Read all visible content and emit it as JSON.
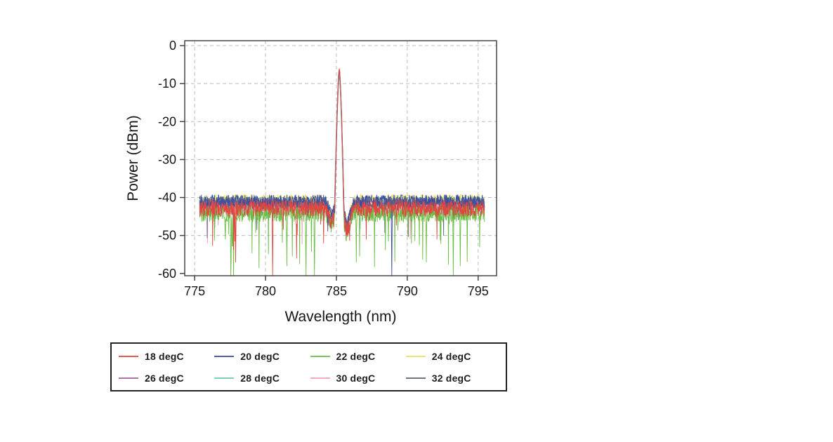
{
  "figure": {
    "background_color": "#ffffff",
    "frame_color": "#454545",
    "text_color": "#161616"
  },
  "chart_data": {
    "type": "line",
    "title": "",
    "xlabel": "Wavelength (nm)",
    "ylabel": "Power (dBm)",
    "xlim": [
      774.3,
      796.3
    ],
    "ylim": [
      -60.6,
      1.3
    ],
    "xticks": [
      775,
      780,
      785,
      790,
      795
    ],
    "yticks": [
      0,
      -10,
      -20,
      -30,
      -40,
      -50,
      -60
    ],
    "grid": {
      "style": "dashed",
      "color": "#bcbcbc"
    },
    "data_x_range_nm": [
      775.35,
      795.45
    ],
    "peak": {
      "center_nm": 785.2,
      "top_dbm": -6.0,
      "halfwidth_nm": 0.32,
      "drop_db": 36
    },
    "noise_floor": {
      "band_top_dbm": -39.5,
      "band_mean_dbm": -42.5,
      "spike_floor_dbm": -60
    },
    "series": [
      {
        "label": "18 degC",
        "color": "#e0463f",
        "noise_base_dbm": -42.8,
        "noise_amp_db": 2.2,
        "spike_prob": 0.012,
        "spike_depth_db": 8,
        "peak_top_dbm": -6.0,
        "z": 8
      },
      {
        "label": "20 degC",
        "color": "#3f4e9e",
        "noise_base_dbm": -41.0,
        "noise_amp_db": 1.7,
        "spike_prob": 0.008,
        "spike_depth_db": 6,
        "peak_top_dbm": -6.5,
        "z": 7
      },
      {
        "label": "22 degC",
        "color": "#6cbd45",
        "noise_base_dbm": -44.2,
        "noise_amp_db": 2.2,
        "spike_prob": 0.03,
        "spike_depth_db": 10,
        "peak_top_dbm": -6.6,
        "z": 6
      },
      {
        "label": "24 degC",
        "color": "#e9e163",
        "noise_base_dbm": -40.6,
        "noise_amp_db": 1.4,
        "spike_prob": 0.004,
        "spike_depth_db": 4,
        "peak_top_dbm": -6.8,
        "z": 1
      },
      {
        "label": "26 degC",
        "color": "#a564a3",
        "noise_base_dbm": -42.5,
        "noise_amp_db": 1.9,
        "spike_prob": 0.009,
        "spike_depth_db": 7,
        "peak_top_dbm": -6.4,
        "z": 3
      },
      {
        "label": "28 degC",
        "color": "#6fc9ba",
        "noise_base_dbm": -41.6,
        "noise_amp_db": 1.6,
        "spike_prob": 0.006,
        "spike_depth_db": 5,
        "peak_top_dbm": -6.7,
        "z": 2
      },
      {
        "label": "30 degC",
        "color": "#eda4b9",
        "noise_base_dbm": -43.0,
        "noise_amp_db": 2.0,
        "spike_prob": 0.012,
        "spike_depth_db": 9,
        "peak_top_dbm": -6.6,
        "z": 4
      },
      {
        "label": "32 degC",
        "color": "#5c6880",
        "noise_base_dbm": -41.6,
        "noise_amp_db": 1.7,
        "spike_prob": 0.006,
        "spike_depth_db": 6,
        "peak_top_dbm": -6.3,
        "z": 5
      }
    ],
    "deep_spikes": [
      {
        "nm": 775.9,
        "series": "30 degC",
        "to_dbm": -52
      },
      {
        "nm": 777.55,
        "series": "22 degC",
        "to_dbm": -60
      },
      {
        "nm": 777.75,
        "series": "22 degC",
        "to_dbm": -60
      },
      {
        "nm": 777.9,
        "series": "18 degC",
        "to_dbm": -57
      },
      {
        "nm": 780.5,
        "series": "18 degC",
        "to_dbm": -60
      },
      {
        "nm": 781.5,
        "series": "22 degC",
        "to_dbm": -58
      },
      {
        "nm": 782.2,
        "series": "18 degC",
        "to_dbm": -56
      },
      {
        "nm": 782.85,
        "series": "22 degC",
        "to_dbm": -60
      },
      {
        "nm": 783.45,
        "series": "22 degC",
        "to_dbm": -60
      },
      {
        "nm": 784.1,
        "series": "18 degC",
        "to_dbm": -52
      },
      {
        "nm": 786.4,
        "series": "22 degC",
        "to_dbm": -57
      },
      {
        "nm": 787.1,
        "series": "18 degC",
        "to_dbm": -51
      },
      {
        "nm": 788.9,
        "series": "20 degC",
        "to_dbm": -60
      },
      {
        "nm": 790.3,
        "series": "22 degC",
        "to_dbm": -52
      },
      {
        "nm": 791.35,
        "series": "22 degC",
        "to_dbm": -57
      },
      {
        "nm": 792.1,
        "series": "18 degC",
        "to_dbm": -51
      },
      {
        "nm": 793.25,
        "series": "22 degC",
        "to_dbm": -60
      },
      {
        "nm": 793.75,
        "series": "22 degC",
        "to_dbm": -58
      },
      {
        "nm": 795.1,
        "series": "22 degC",
        "to_dbm": -53
      }
    ],
    "legend": {
      "position": "below-plot",
      "rows": 2,
      "columns": 4,
      "border_color": "#232323"
    }
  }
}
